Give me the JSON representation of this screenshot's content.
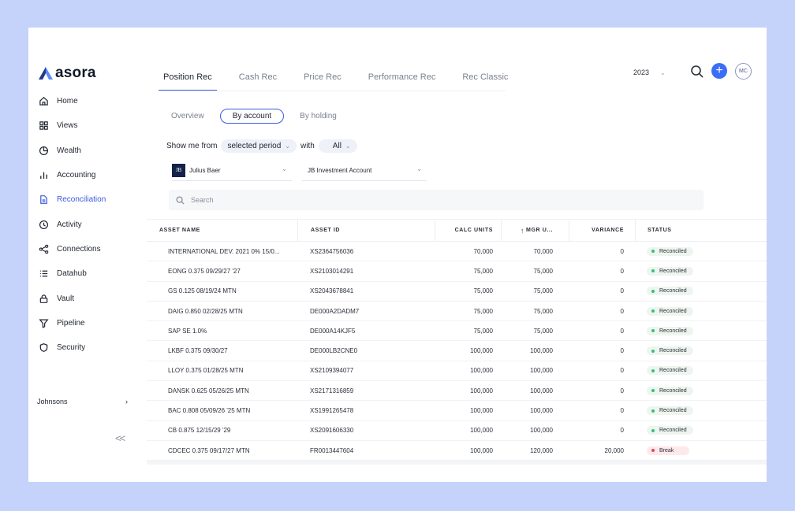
{
  "app": {
    "name": "asora"
  },
  "sidebar": {
    "items": [
      {
        "label": "Home",
        "icon": "home-icon"
      },
      {
        "label": "Views",
        "icon": "grid-icon"
      },
      {
        "label": "Wealth",
        "icon": "pie-chart-icon"
      },
      {
        "label": "Accounting",
        "icon": "bar-chart-icon"
      },
      {
        "label": "Reconciliation",
        "icon": "document-icon",
        "active": true
      },
      {
        "label": "Activity",
        "icon": "clock-icon"
      },
      {
        "label": "Connections",
        "icon": "share-icon"
      },
      {
        "label": "Datahub",
        "icon": "list-icon"
      },
      {
        "label": "Vault",
        "icon": "lock-icon"
      },
      {
        "label": "Pipeline",
        "icon": "filter-icon"
      },
      {
        "label": "Security",
        "icon": "shield-icon"
      }
    ],
    "workspace": "Johnsons",
    "collapse_label": "<<"
  },
  "tabs": [
    "Position Rec",
    "Cash Rec",
    "Price Rec",
    "Performance Rec",
    "Rec Classic"
  ],
  "header": {
    "year": "2023",
    "avatar_initials": "MC",
    "add_label": "+"
  },
  "subtabs": [
    "Overview",
    "By account",
    "By holding"
  ],
  "filter": {
    "prefix": "Show me from",
    "period": "selected period",
    "with": "with",
    "scope": "All"
  },
  "dropdowns": {
    "custodian": "Julius Baer",
    "custodian_logo": "JB",
    "account": "JB Investment Account"
  },
  "search": {
    "placeholder": "Search"
  },
  "table": {
    "headers": {
      "asset_name": "ASSET NAME",
      "asset_id": "ASSET ID",
      "calc_units": "CALC UNITS",
      "mgr_units": "MGR U...",
      "variance": "VARIANCE",
      "status": "STATUS"
    },
    "rows": [
      {
        "name": "INTERNATIONAL DEV. 2021 0% 15/0...",
        "id": "XS2364756036",
        "calc": "70,000",
        "mgr": "70,000",
        "variance": "0",
        "status": "Reconciled"
      },
      {
        "name": "EONG 0.375 09/29/27 '27",
        "id": "XS2103014291",
        "calc": "75,000",
        "mgr": "75,000",
        "variance": "0",
        "status": "Reconciled"
      },
      {
        "name": "GS 0.125 08/19/24 MTN",
        "id": "XS2043678841",
        "calc": "75,000",
        "mgr": "75,000",
        "variance": "0",
        "status": "Reconciled"
      },
      {
        "name": "DAIG 0.850 02/28/25 MTN",
        "id": "DE000A2DADM7",
        "calc": "75,000",
        "mgr": "75,000",
        "variance": "0",
        "status": "Reconciled"
      },
      {
        "name": "SAP SE 1.0%",
        "id": "DE000A14KJF5",
        "calc": "75,000",
        "mgr": "75,000",
        "variance": "0",
        "status": "Reconciled"
      },
      {
        "name": "LKBF 0.375 09/30/27",
        "id": "DE000LB2CNE0",
        "calc": "100,000",
        "mgr": "100,000",
        "variance": "0",
        "status": "Reconciled"
      },
      {
        "name": "LLOY 0.375 01/28/25 MTN",
        "id": "XS2109394077",
        "calc": "100,000",
        "mgr": "100,000",
        "variance": "0",
        "status": "Reconciled"
      },
      {
        "name": "DANSK 0.625 05/26/25 MTN",
        "id": "XS2171316859",
        "calc": "100,000",
        "mgr": "100,000",
        "variance": "0",
        "status": "Reconciled"
      },
      {
        "name": "BAC 0.808 05/09/26 '25 MTN",
        "id": "XS1991265478",
        "calc": "100,000",
        "mgr": "100,000",
        "variance": "0",
        "status": "Reconciled"
      },
      {
        "name": "CB 0.875 12/15/29 '29",
        "id": "XS2091606330",
        "calc": "100,000",
        "mgr": "100,000",
        "variance": "0",
        "status": "Reconciled"
      },
      {
        "name": "CDCEC 0.375 09/17/27 MTN",
        "id": "FR0013447604",
        "calc": "100,000",
        "mgr": "120,000",
        "variance": "20,000",
        "status": "Break"
      }
    ]
  },
  "colors": {
    "accent": "#3b5bdb",
    "plus": "#3b6ef6",
    "reconciled": "#2ec27e",
    "break": "#e5484d",
    "background": "#c5d3fb"
  }
}
